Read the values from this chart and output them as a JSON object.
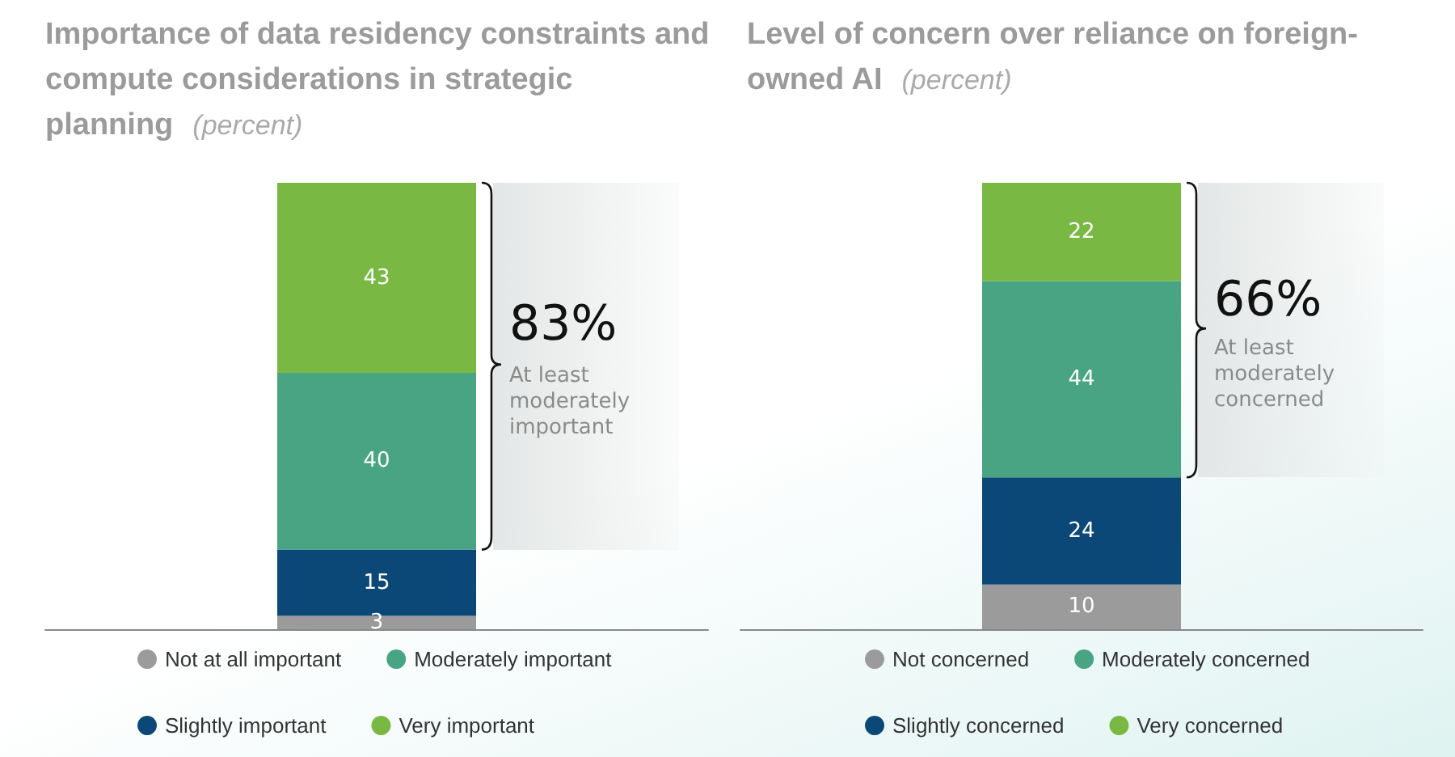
{
  "chart_data": [
    {
      "type": "bar",
      "title": "Importance of data residency constraints and compute considerations in strategic planning",
      "subtitle": "(percent)",
      "categories": [
        null
      ],
      "stacked": true,
      "data_labels": true,
      "legend": "bottom",
      "annotations": [
        "83%",
        "At least moderately important"
      ],
      "series": [
        {
          "name": "Not at all important",
          "color": "#9b9b9b",
          "values": [
            3
          ]
        },
        {
          "name": "Slightly important",
          "color": "#0c4877",
          "values": [
            15
          ]
        },
        {
          "name": "Moderately important",
          "color": "#48a482",
          "values": [
            40
          ]
        },
        {
          "name": "Very important",
          "color": "#78b843",
          "values": [
            43
          ]
        }
      ]
    },
    {
      "type": "bar",
      "title": "Level of concern over reliance on foreign-owned AI",
      "subtitle": "(percent)",
      "categories": [
        null
      ],
      "stacked": true,
      "data_labels": true,
      "legend": "bottom",
      "annotations": [
        "66%",
        "At least moderately concerned"
      ],
      "series": [
        {
          "name": "Not concerned",
          "color": "#9b9b9b",
          "values": [
            10
          ]
        },
        {
          "name": "Slightly concerned",
          "color": "#0c4877",
          "values": [
            24
          ]
        },
        {
          "name": "Moderately concerned",
          "color": "#48a482",
          "values": [
            44
          ]
        },
        {
          "name": "Very concerned",
          "color": "#78b843",
          "values": [
            22
          ]
        }
      ]
    }
  ]
}
